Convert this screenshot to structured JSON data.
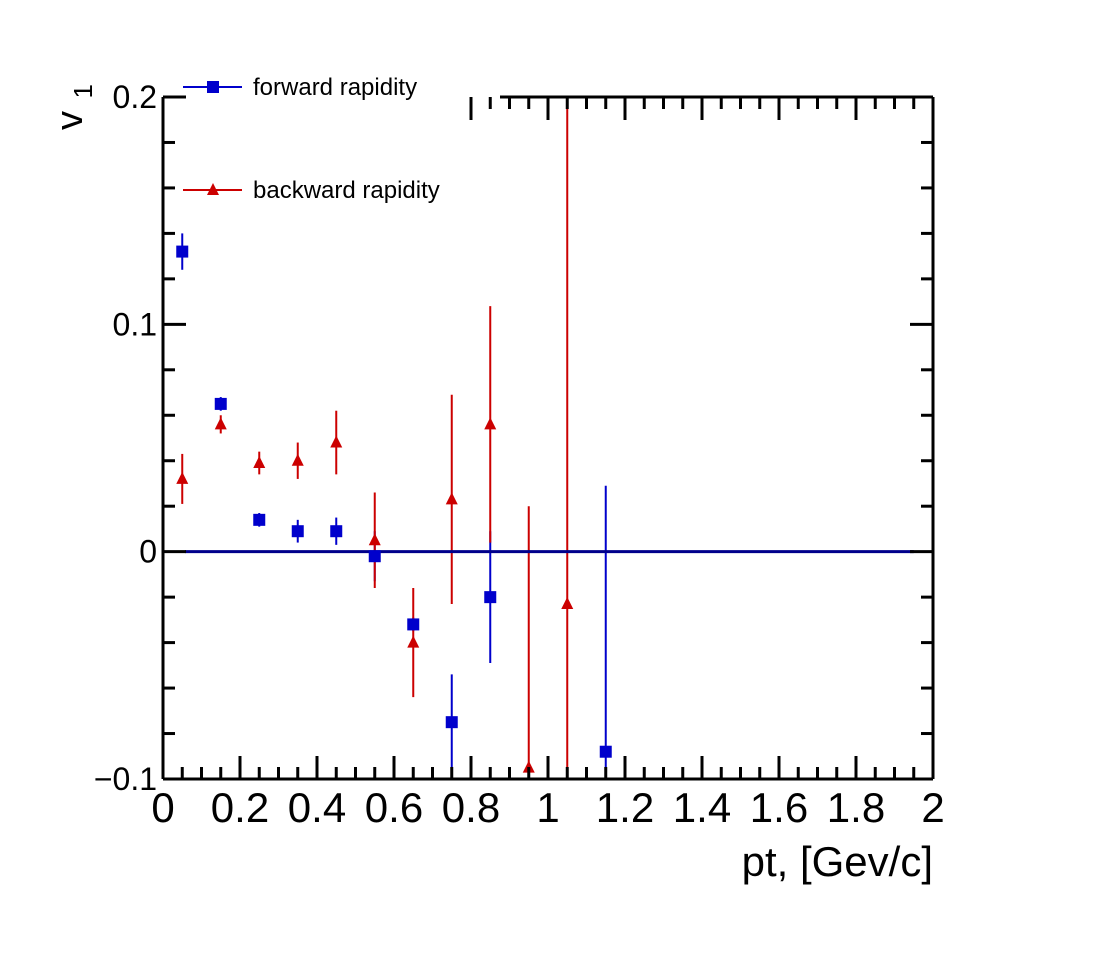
{
  "chart_data": {
    "type": "scatter",
    "xlabel": "pt, [Gev/c]",
    "ylabel": "v",
    "ylabel_sub": "1",
    "xlim": [
      0,
      2
    ],
    "ylim": [
      -0.1,
      0.2
    ],
    "x_ticks": [
      "0",
      "0.2",
      "0.4",
      "0.6",
      "0.8",
      "1",
      "1.2",
      "1.4",
      "1.6",
      "1.8",
      "2"
    ],
    "y_ticks": [
      "−0.1",
      "0",
      "0.1",
      "0.2"
    ],
    "grid": false,
    "legend_placement": "top-left",
    "reference_line": {
      "y": 0,
      "x_range": [
        0,
        1.95
      ],
      "color": "#00008b"
    },
    "series": [
      {
        "name": "forward rapidity",
        "marker": "square",
        "color": "#0000cc",
        "points": [
          {
            "x": 0.05,
            "y": 0.132,
            "err": 0.008
          },
          {
            "x": 0.15,
            "y": 0.065,
            "err": 0.003
          },
          {
            "x": 0.25,
            "y": 0.014,
            "err": 0.003
          },
          {
            "x": 0.35,
            "y": 0.009,
            "err": 0.005
          },
          {
            "x": 0.45,
            "y": 0.009,
            "err": 0.006
          },
          {
            "x": 0.55,
            "y": -0.002,
            "err": 0.011
          },
          {
            "x": 0.65,
            "y": -0.032,
            "err": 0.003
          },
          {
            "x": 0.75,
            "y": -0.075,
            "err": 0.021
          },
          {
            "x": 0.85,
            "y": -0.02,
            "err": 0.029
          },
          {
            "x": 1.15,
            "y": -0.088,
            "err": 0.117
          }
        ]
      },
      {
        "name": "backward rapidity",
        "marker": "triangle",
        "color": "#cc0000",
        "points": [
          {
            "x": 0.05,
            "y": 0.032,
            "err": 0.011
          },
          {
            "x": 0.15,
            "y": 0.056,
            "err": 0.004
          },
          {
            "x": 0.25,
            "y": 0.039,
            "err": 0.005
          },
          {
            "x": 0.35,
            "y": 0.04,
            "err": 0.008
          },
          {
            "x": 0.45,
            "y": 0.048,
            "err": 0.014
          },
          {
            "x": 0.55,
            "y": 0.005,
            "err": 0.021
          },
          {
            "x": 0.65,
            "y": -0.04,
            "err": 0.024
          },
          {
            "x": 0.75,
            "y": 0.023,
            "err": 0.046
          },
          {
            "x": 0.85,
            "y": 0.056,
            "err": 0.052
          },
          {
            "x": 0.95,
            "y": -0.095,
            "err": 0.115
          },
          {
            "x": 1.05,
            "y": -0.023,
            "err": 0.22
          }
        ]
      }
    ]
  }
}
